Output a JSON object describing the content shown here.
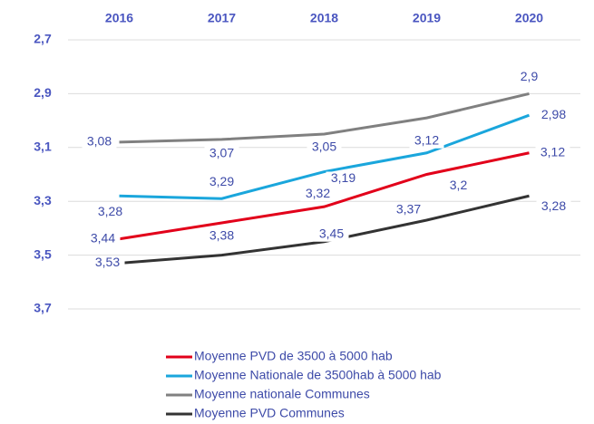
{
  "chart_data": {
    "type": "line",
    "categories": [
      "2016",
      "2017",
      "2018",
      "2019",
      "2020"
    ],
    "ylim": [
      2.7,
      3.7
    ],
    "y_inverted": true,
    "yticks": [
      {
        "value": 2.7,
        "label": "2,7"
      },
      {
        "value": 2.9,
        "label": "2,9"
      },
      {
        "value": 3.1,
        "label": "3,1"
      },
      {
        "value": 3.3,
        "label": "3,3"
      },
      {
        "value": 3.5,
        "label": "3,5"
      },
      {
        "value": 3.7,
        "label": "3,7"
      }
    ],
    "grid": true,
    "legend": "bottom",
    "series": [
      {
        "name": "Moyenne PVD de 3500 à 5000 hab",
        "color": "#e2001a",
        "values": [
          3.44,
          3.38,
          3.32,
          3.2,
          3.12
        ],
        "value_labels": [
          "3,44",
          "3,38",
          "3,32",
          "3,2",
          "3,12"
        ]
      },
      {
        "name": "Moyenne Nationale de 3500hab à 5000 hab",
        "color": "#1aa6dc",
        "values": [
          3.28,
          3.29,
          3.19,
          3.12,
          2.98
        ],
        "value_labels": [
          "3,28",
          "3,29",
          "3,19",
          "3,12",
          "2,98"
        ]
      },
      {
        "name": "Moyenne nationale Communes",
        "color": "#808080",
        "values": [
          3.08,
          3.07,
          3.05,
          2.99,
          2.9
        ],
        "value_labels": [
          "3,08",
          "3,07",
          "3,05",
          null,
          "2,9"
        ]
      },
      {
        "name": "Moyenne PVD Communes",
        "color": "#333333",
        "values": [
          3.53,
          3.5,
          3.45,
          3.37,
          3.28
        ],
        "value_labels": [
          "3,53",
          null,
          "3,45",
          "3,37",
          "3,28"
        ]
      }
    ]
  }
}
